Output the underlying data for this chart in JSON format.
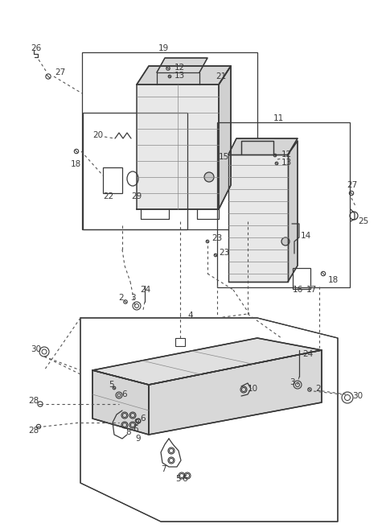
{
  "bg_color": "#ffffff",
  "lc": "#3a3a3a",
  "lc_light": "#888888",
  "fig_width": 4.8,
  "fig_height": 6.56,
  "dpi": 100
}
